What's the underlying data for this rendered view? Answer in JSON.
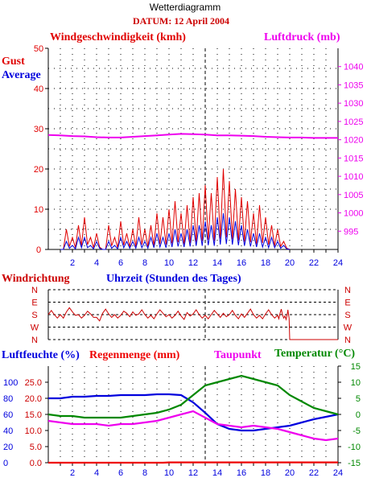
{
  "header": {
    "title": "Wetterdiagramm",
    "date_label": "DATUM: 12 April 2004"
  },
  "colors": {
    "red": "#e00000",
    "blue": "#0000dd",
    "magenta": "#ee00ee",
    "green": "#008800",
    "dark_red": "#cc0000",
    "grid": "#000000",
    "background": "#ffffff"
  },
  "chart_data": [
    {
      "type": "line",
      "panel": "wind_pressure",
      "title": "Windgeschwindigkeit (kmh)",
      "right_title": "Luftdruck (mb)",
      "left_labels": [
        "Gust",
        "Average"
      ],
      "xlabel": "Uhrzeit (Stunden des Tages)",
      "xlim": [
        0,
        24
      ],
      "x_ticks": [
        2,
        4,
        6,
        8,
        10,
        12,
        14,
        16,
        18,
        20,
        22,
        24
      ],
      "ylim": [
        0,
        50
      ],
      "y_ticks": [
        0,
        10,
        20,
        30,
        40,
        50
      ],
      "y2lim": [
        990,
        1045
      ],
      "y2_ticks": [
        995,
        1000,
        1005,
        1010,
        1015,
        1020,
        1025,
        1030,
        1035,
        1040
      ],
      "grid": "dotted",
      "marker_x": 13,
      "series": [
        {
          "name": "Gust",
          "color": "#e00000",
          "axis": "left",
          "x": [
            1.0,
            1.5,
            2.0,
            2.5,
            3.0,
            3.5,
            4.0,
            4.5,
            5.0,
            5.5,
            6.0,
            6.5,
            7.0,
            7.5,
            8.0,
            8.5,
            9.0,
            9.5,
            10.0,
            10.5,
            11.0,
            11.5,
            12.0,
            12.5,
            13.0,
            13.5,
            14.0,
            14.5,
            15.0,
            15.5,
            16.0,
            16.5,
            17.0,
            17.5,
            18.0,
            18.5,
            19.0,
            19.5,
            20.0
          ],
          "values": [
            0,
            5,
            3,
            6,
            8,
            3,
            4,
            0,
            6,
            3,
            7,
            4,
            5,
            8,
            5,
            6,
            9,
            8,
            10,
            12,
            9,
            11,
            13,
            14,
            16,
            14,
            18,
            20,
            17,
            15,
            13,
            12,
            9,
            11,
            8,
            6,
            5,
            2,
            0
          ]
        },
        {
          "name": "Average",
          "color": "#0000dd",
          "axis": "left",
          "x": [
            1.0,
            1.5,
            2.0,
            2.5,
            3.0,
            3.5,
            4.0,
            4.5,
            5.0,
            5.5,
            6.0,
            6.5,
            7.0,
            7.5,
            8.0,
            8.5,
            9.0,
            9.5,
            10.0,
            10.5,
            11.0,
            11.5,
            12.0,
            12.5,
            13.0,
            13.5,
            14.0,
            14.5,
            15.0,
            15.5,
            16.0,
            16.5,
            17.0,
            17.5,
            18.0,
            18.5,
            19.0,
            19.5,
            20.0
          ],
          "values": [
            0,
            2,
            1,
            3,
            3,
            1,
            2,
            0,
            2,
            1,
            3,
            2,
            2,
            3,
            2,
            3,
            4,
            3,
            4,
            5,
            4,
            5,
            6,
            6,
            7,
            6,
            8,
            9,
            8,
            7,
            6,
            5,
            4,
            4,
            3,
            3,
            2,
            1,
            0
          ]
        },
        {
          "name": "Luftdruck",
          "color": "#ee00ee",
          "axis": "right",
          "x": [
            0,
            1,
            2,
            3,
            4,
            5,
            6,
            7,
            8,
            9,
            10,
            11,
            12,
            13,
            14,
            15,
            16,
            17,
            18,
            19,
            20,
            21,
            22,
            23,
            24
          ],
          "values": [
            1021.3,
            1021.2,
            1021.0,
            1020.9,
            1020.7,
            1020.6,
            1020.6,
            1020.8,
            1021.0,
            1021.2,
            1021.4,
            1021.6,
            1021.5,
            1021.4,
            1021.2,
            1021.2,
            1021.1,
            1021.0,
            1020.8,
            1020.7,
            1020.6,
            1020.6,
            1020.5,
            1020.5,
            1020.5
          ]
        }
      ]
    },
    {
      "type": "line",
      "panel": "wind_direction",
      "title": "Windrichtung",
      "categories": [
        "N",
        "W",
        "S",
        "E",
        "N"
      ],
      "xlim": [
        0,
        24
      ],
      "series": [
        {
          "name": "Windrichtung",
          "color": "#cc0000",
          "values": [
            180,
            180,
            180,
            200,
            200,
            180,
            175,
            185,
            160,
            190,
            185,
            180,
            175,
            190,
            200,
            185,
            180,
            175,
            185,
            190,
            180,
            175,
            170,
            195,
            185,
            180,
            175,
            180,
            185,
            190,
            180,
            175,
            185,
            190,
            180,
            175,
            185,
            180,
            175,
            190,
            180,
            170,
            185,
            180,
            0,
            0,
            0,
            0,
            0
          ],
          "x": [
            0,
            0.5,
            1,
            1.5,
            2,
            2.5,
            3,
            3.5,
            4,
            4.5,
            5,
            5.5,
            6,
            6.5,
            7,
            7.5,
            8,
            8.5,
            9,
            9.5,
            10,
            10.5,
            11,
            11.5,
            12,
            12.5,
            13,
            13.5,
            14,
            14.5,
            15,
            15.5,
            16,
            16.5,
            17,
            17.5,
            18,
            18.5,
            19,
            19.2,
            19.4,
            19.6,
            19.8,
            19.9,
            20,
            21,
            22,
            23,
            24
          ]
        }
      ]
    },
    {
      "type": "line",
      "panel": "humidity_rain_temp",
      "titles": [
        "Luftfeuchte (%)",
        "Regenmenge (mm)",
        "Taupunkt",
        "Temperatur (°C)"
      ],
      "xlim": [
        0,
        24
      ],
      "x_ticks": [
        2,
        4,
        6,
        8,
        10,
        12,
        14,
        16,
        18,
        20,
        22,
        24
      ],
      "left_ticks_humidity": [
        0,
        20,
        40,
        60,
        80,
        100
      ],
      "left_ticks_rain": [
        "0.0",
        "5.0",
        "10.0",
        "15.0",
        "20.0",
        "25.0"
      ],
      "right_ticks_temp": [
        -15,
        -10,
        -5,
        0,
        5,
        10,
        15
      ],
      "ylim_temp": [
        -15,
        15
      ],
      "marker_x": 13,
      "series": [
        {
          "name": "Luftfeuchte",
          "color": "#0000dd",
          "axis": "humidity",
          "x": [
            0,
            1,
            2,
            3,
            4,
            5,
            6,
            7,
            8,
            9,
            10,
            11,
            12,
            13,
            14,
            15,
            16,
            17,
            18,
            19,
            20,
            21,
            22,
            23,
            24
          ],
          "values": [
            80,
            80,
            82,
            82,
            83,
            83,
            84,
            84,
            84,
            85,
            85,
            84,
            75,
            62,
            48,
            42,
            40,
            40,
            42,
            44,
            46,
            50,
            54,
            57,
            60
          ]
        },
        {
          "name": "Regenmenge",
          "color": "#ee0000",
          "axis": "rain",
          "x": [
            0,
            9.5,
            10,
            24
          ],
          "values": [
            0,
            0,
            0.1,
            0.1
          ]
        },
        {
          "name": "Taupunkt",
          "color": "#ee00ee",
          "axis": "temp",
          "x": [
            0,
            1,
            2,
            3,
            4,
            5,
            6,
            7,
            8,
            9,
            10,
            11,
            12,
            13,
            14,
            15,
            16,
            17,
            18,
            19,
            20,
            21,
            22,
            23,
            24
          ],
          "values": [
            -2,
            -2.5,
            -3,
            -3,
            -3,
            -3.5,
            -3,
            -3,
            -2.5,
            -2,
            -1,
            0,
            1,
            -1,
            -3,
            -3.5,
            -4,
            -3.5,
            -4,
            -4.5,
            -5.5,
            -6.5,
            -7.5,
            -8,
            -7.5
          ]
        },
        {
          "name": "Temperatur",
          "color": "#008800",
          "axis": "temp",
          "x": [
            0,
            1,
            2,
            3,
            4,
            5,
            6,
            7,
            8,
            9,
            10,
            11,
            12,
            13,
            14,
            15,
            16,
            17,
            18,
            19,
            20,
            21,
            22,
            23,
            24
          ],
          "values": [
            0,
            -0.5,
            -0.5,
            -1,
            -1,
            -1,
            -1,
            -0.5,
            0,
            0.5,
            1.5,
            3,
            6,
            9,
            10,
            11,
            12,
            11,
            10,
            9,
            6,
            4,
            2,
            1,
            0
          ]
        }
      ]
    }
  ]
}
